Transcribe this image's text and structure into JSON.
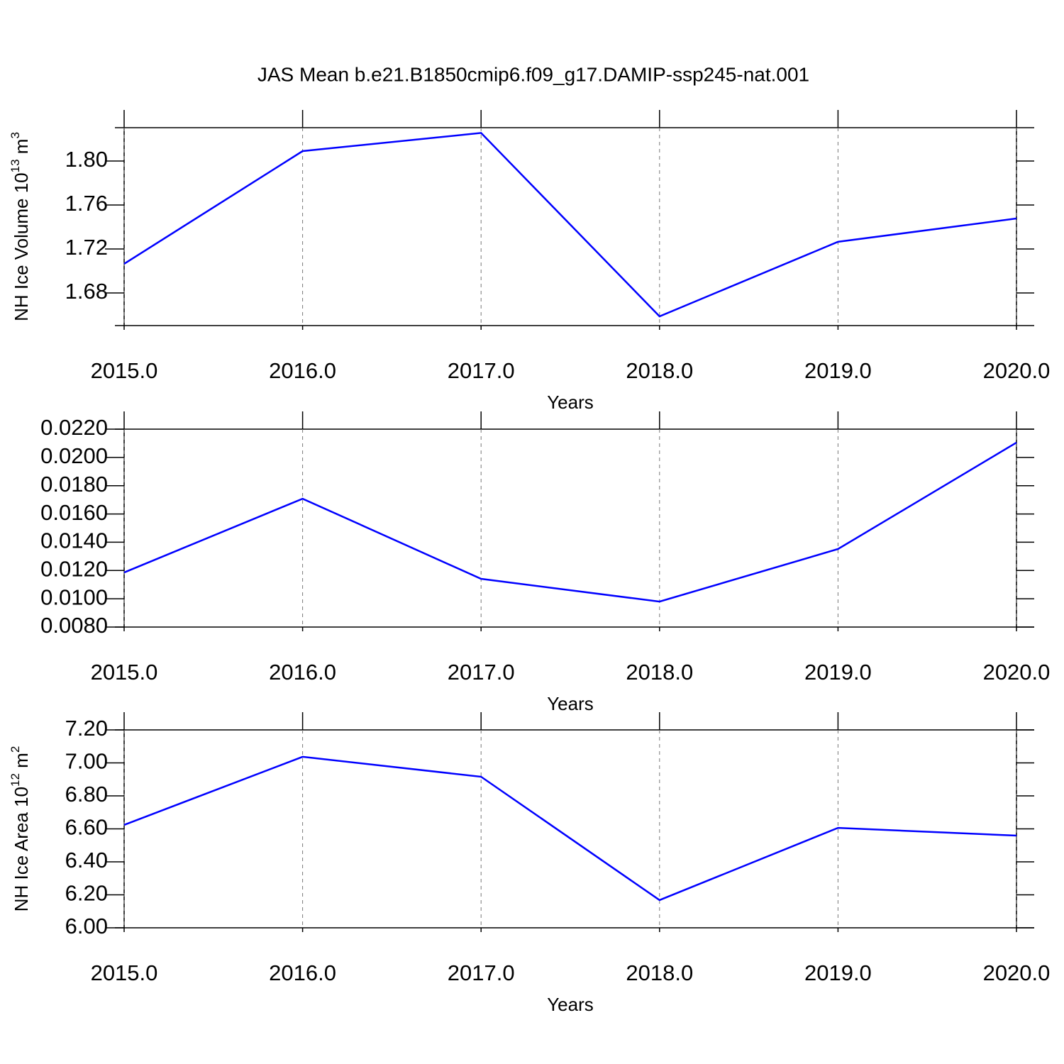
{
  "title": "JAS Mean b.e21.B1850cmip6.f09_g17.DAMIP-ssp245-nat.001",
  "chart_data": [
    {
      "type": "line",
      "x": [
        2015,
        2016,
        2017,
        2018,
        2019,
        2020
      ],
      "values": [
        1.7065,
        1.809,
        1.8255,
        1.6587,
        1.7265,
        1.7477
      ],
      "color": "#0000ff",
      "xlim": [
        2015,
        2020
      ],
      "xticks": [
        {
          "value": 2015,
          "label": "2015.0"
        },
        {
          "value": 2016,
          "label": "2016.0"
        },
        {
          "value": 2017,
          "label": "2017.0"
        },
        {
          "value": 2018,
          "label": "2018.0"
        },
        {
          "value": 2019,
          "label": "2019.0"
        },
        {
          "value": 2020,
          "label": "2020.0"
        }
      ],
      "ylim": [
        1.6503,
        1.8303
      ],
      "yticks": [
        {
          "value": 1.68,
          "label": "1.68"
        },
        1.72,
        1.76,
        {
          "value": 1.8,
          "label": "1.80"
        }
      ],
      "xlabel": "Years",
      "ylabel": [
        "NH Ice Volume 10",
        "13",
        " m",
        "3"
      ],
      "grid": true
    },
    {
      "type": "line",
      "x": [
        2015,
        2016,
        2017,
        2018,
        2019,
        2020
      ],
      "values": [
        0.01186,
        0.01708,
        0.01141,
        0.0098,
        0.01352,
        0.02105
      ],
      "color": "#0000ff",
      "xlim": [
        2015,
        2020
      ],
      "xticks": [
        {
          "value": 2015,
          "label": "2015.0"
        },
        {
          "value": 2016,
          "label": "2016.0"
        },
        {
          "value": 2017,
          "label": "2017.0"
        },
        {
          "value": 2018,
          "label": "2018.0"
        },
        {
          "value": 2019,
          "label": "2019.0"
        },
        {
          "value": 2020,
          "label": "2020.0"
        }
      ],
      "ylim": [
        0.008,
        0.022
      ],
      "yticks": [
        {
          "value": 0.008,
          "label": "0.0080"
        },
        {
          "value": 0.01,
          "label": "0.0100"
        },
        {
          "value": 0.012,
          "label": "0.0120"
        },
        {
          "value": 0.014,
          "label": "0.0140"
        },
        {
          "value": 0.016,
          "label": "0.0160"
        },
        {
          "value": 0.018,
          "label": "0.0180"
        },
        {
          "value": 0.02,
          "label": "0.0200"
        },
        {
          "value": 0.022,
          "label": "0.0220"
        }
      ],
      "xlabel": "Years",
      "grid": true
    },
    {
      "type": "line",
      "x": [
        2015,
        2016,
        2017,
        2018,
        2019,
        2020
      ],
      "values": [
        6.624,
        7.037,
        6.916,
        6.168,
        6.606,
        6.559
      ],
      "color": "#0000ff",
      "xlim": [
        2015,
        2020
      ],
      "xticks": [
        {
          "value": 2015,
          "label": "2015.0"
        },
        {
          "value": 2016,
          "label": "2016.0"
        },
        {
          "value": 2017,
          "label": "2017.0"
        },
        {
          "value": 2018,
          "label": "2018.0"
        },
        {
          "value": 2019,
          "label": "2019.0"
        },
        {
          "value": 2020,
          "label": "2020.0"
        }
      ],
      "ylim": [
        6.0,
        7.2
      ],
      "yticks": [
        {
          "value": 6.0,
          "label": "6.00"
        },
        {
          "value": 6.2,
          "label": "6.20"
        },
        {
          "value": 6.4,
          "label": "6.40"
        },
        {
          "value": 6.6,
          "label": "6.60"
        },
        {
          "value": 6.8,
          "label": "6.80"
        },
        {
          "value": 7.0,
          "label": "7.00"
        },
        {
          "value": 7.2,
          "label": "7.20"
        }
      ],
      "xlabel": "Years",
      "ylabel": [
        "NH Ice Area 10",
        "12",
        " m",
        "2"
      ],
      "grid": true
    }
  ]
}
